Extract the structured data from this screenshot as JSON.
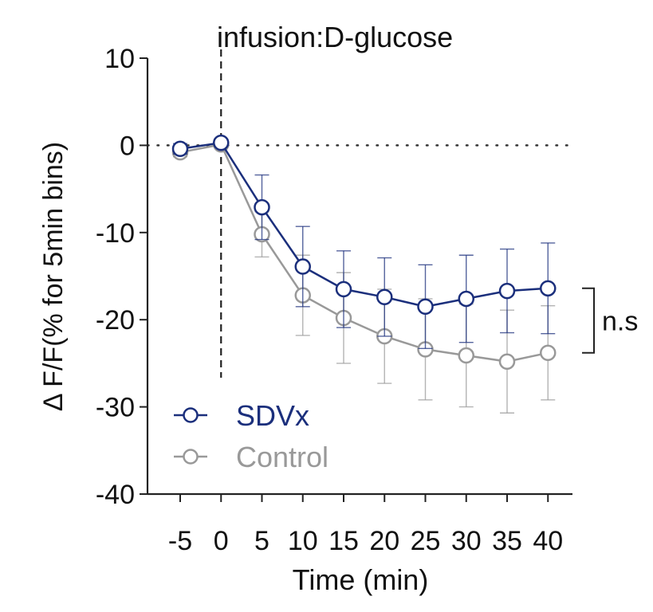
{
  "chart_data": {
    "type": "line",
    "title": "",
    "annotation": "infusion:D-glucose",
    "xlabel": "Time (min)",
    "ylabel": "Δ F/F(% for 5min bins)",
    "x": [
      -5,
      0,
      5,
      10,
      15,
      20,
      25,
      30,
      35,
      40
    ],
    "x_tick_labels": [
      "-5",
      "0",
      "5",
      "10",
      "15",
      "20",
      "25",
      "30",
      "35",
      "40"
    ],
    "y_ticks": [
      10,
      0,
      -10,
      -20,
      -30,
      -40
    ],
    "y_tick_labels": [
      "10",
      "0",
      "-10",
      "-20",
      "-30",
      "-40"
    ],
    "xlim": [
      -9,
      43
    ],
    "ylim": [
      -40,
      10
    ],
    "reference_line_y": 0,
    "infusion_x": 0,
    "series": [
      {
        "name": "SDVx",
        "color": "#1b2f7c",
        "values": [
          -0.4,
          0.3,
          -7.1,
          -13.9,
          -16.5,
          -17.4,
          -18.5,
          -17.6,
          -16.7,
          -16.4
        ],
        "errors": [
          0.6,
          0.4,
          3.7,
          4.6,
          4.4,
          4.5,
          4.8,
          5.0,
          4.8,
          5.2
        ]
      },
      {
        "name": "Control",
        "color": "#999999",
        "values": [
          -0.8,
          0.1,
          -10.2,
          -17.2,
          -19.8,
          -21.9,
          -23.4,
          -24.1,
          -24.8,
          -23.8
        ],
        "errors": [
          0.5,
          0.3,
          2.6,
          4.6,
          5.2,
          5.4,
          5.8,
          5.9,
          5.9,
          5.4
        ]
      }
    ],
    "significance": {
      "label": "n.s",
      "y_top": -16.4,
      "y_bottom": -23.8
    }
  }
}
